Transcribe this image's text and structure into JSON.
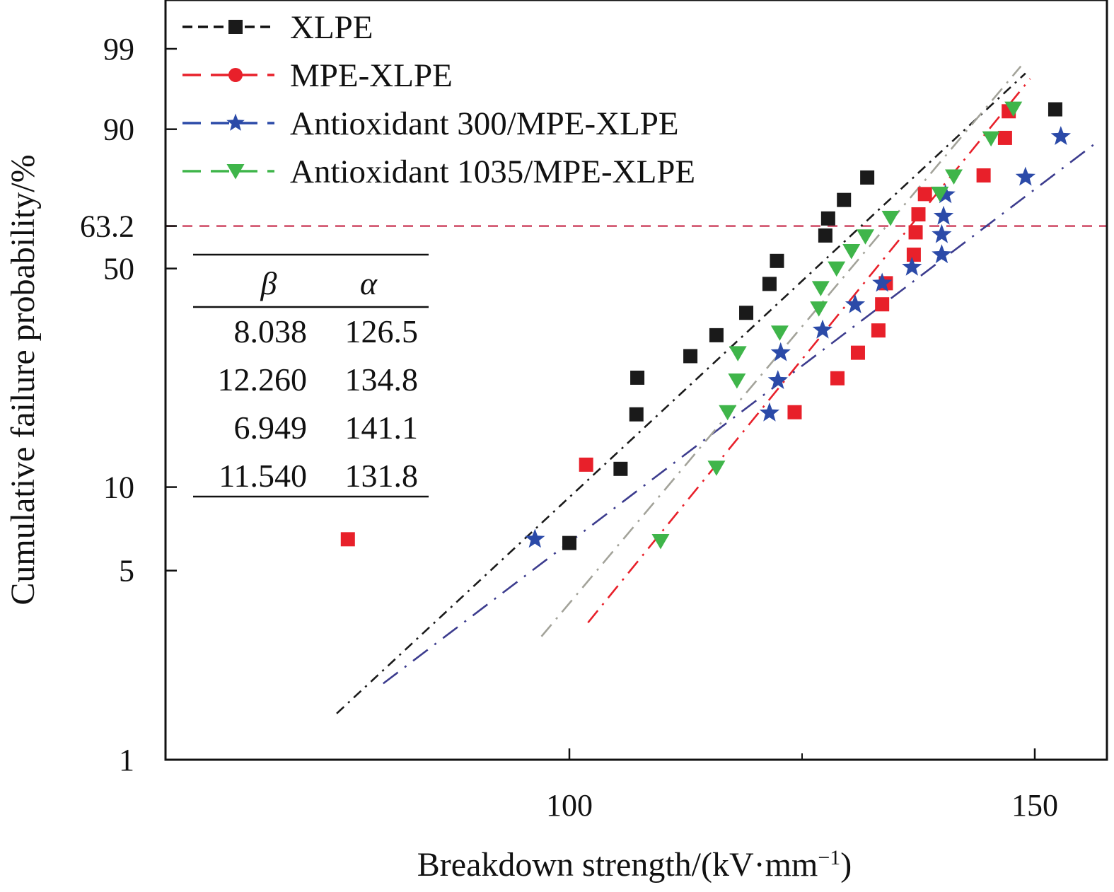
{
  "chart_data": {
    "type": "scatter",
    "subtype": "weibull-probability-plot",
    "xlabel": "Breakdown strength/(kV·mm",
    "xlabel_sup": "−1",
    "xlabel_close": ")",
    "ylabel": "Cumulative failure probability/%",
    "xlim": [
      56,
      157
    ],
    "x_ticks": [
      100,
      150
    ],
    "x_tick_labels": [
      "100",
      "150"
    ],
    "y_ticks": [
      1,
      5,
      10,
      50,
      63.2,
      90,
      99
    ],
    "y_tick_labels": [
      "1",
      "5",
      "10",
      "50",
      "63.2",
      "90",
      "99"
    ],
    "reference_line_percent": 63.2,
    "legend": {
      "position": "top-left",
      "entries": [
        "XLPE",
        "MPE-XLPE",
        "Antioxidant 300/MPE-XLPE",
        "Antioxidant 1035/MPE-XLPE"
      ]
    },
    "parameter_table": {
      "headers": [
        "β",
        "α"
      ],
      "rows": [
        [
          "8.038",
          "126.5"
        ],
        [
          "12.260",
          "134.8"
        ],
        [
          "6.949",
          "141.1"
        ],
        [
          "11.540",
          "131.8"
        ]
      ]
    },
    "series": [
      {
        "name": "XLPE",
        "marker": "square",
        "color": "#1a1a1a",
        "fit_color": "#1a1a1a",
        "beta": 8.038,
        "alpha": 126.5,
        "fit_x_range": [
          75,
          149
        ],
        "points": [
          [
            100,
            6.3
          ],
          [
            105.5,
            11.6
          ],
          [
            107.2,
            17.9
          ],
          [
            107.3,
            23.7
          ],
          [
            113,
            27.8
          ],
          [
            115.8,
            32.3
          ],
          [
            119,
            37.7
          ],
          [
            121.5,
            45.5
          ],
          [
            122.3,
            52.3
          ],
          [
            127.5,
            60.2
          ],
          [
            127.8,
            65.6
          ],
          [
            129.5,
            71.4
          ],
          [
            132,
            78.1
          ],
          [
            152.2,
            93.5
          ]
        ]
      },
      {
        "name": "MPE-XLPE",
        "marker": "square",
        "color": "#e8202a",
        "fit_color": "#e8202a",
        "beta": 12.26,
        "alpha": 134.8,
        "fit_x_range": [
          102,
          149.5
        ],
        "points": [
          [
            76.2,
            6.5
          ],
          [
            101.8,
            12
          ],
          [
            124.2,
            18.2
          ],
          [
            128.8,
            23.6
          ],
          [
            131,
            28.5
          ],
          [
            133.2,
            33.4
          ],
          [
            133.6,
            39.9
          ],
          [
            134,
            45.7
          ],
          [
            137,
            54.2
          ],
          [
            137.2,
            61.2
          ],
          [
            137.5,
            66.9
          ],
          [
            138.2,
            73.2
          ],
          [
            144.5,
            78.7
          ],
          [
            146.8,
            88.2
          ],
          [
            147.2,
            93.2
          ]
        ]
      },
      {
        "name": "Antioxidant 300/MPE-XLPE",
        "marker": "star",
        "color": "#2b4aa8",
        "fit_color": "#3c3c8e",
        "beta": 6.949,
        "alpha": 141.1,
        "fit_x_range": [
          80,
          157
        ],
        "points": [
          [
            96.3,
            6.5
          ],
          [
            121.5,
            18.1
          ],
          [
            122.4,
            23.2
          ],
          [
            122.7,
            28.5
          ],
          [
            127.2,
            33.5
          ],
          [
            130.7,
            39.8
          ],
          [
            133.6,
            45.7
          ],
          [
            136.8,
            50.4
          ],
          [
            140,
            54.2
          ],
          [
            140,
            60.5
          ],
          [
            140.2,
            66.3
          ],
          [
            140.4,
            73
          ],
          [
            149,
            78.2
          ],
          [
            152.8,
            88.5
          ]
        ]
      },
      {
        "name": "Antioxidant 1035/MPE-XLPE",
        "marker": "triangle-down",
        "color": "#3fb54a",
        "fit_color": "#a3a39a",
        "beta": 11.54,
        "alpha": 131.8,
        "fit_x_range": [
          97,
          148.5
        ],
        "points": [
          [
            109.8,
            6.4
          ],
          [
            115.8,
            11.7
          ],
          [
            117,
            18.2
          ],
          [
            118,
            23.2
          ],
          [
            118.1,
            28.4
          ],
          [
            122.6,
            32.9
          ],
          [
            126.8,
            38.8
          ],
          [
            127,
            44.3
          ],
          [
            128.7,
            50
          ],
          [
            130.3,
            55.3
          ],
          [
            131.8,
            59.9
          ],
          [
            134.5,
            65.8
          ],
          [
            139.8,
            73.3
          ],
          [
            141.3,
            78.4
          ],
          [
            145.3,
            88.1
          ],
          [
            147.7,
            93.6
          ]
        ]
      }
    ]
  }
}
